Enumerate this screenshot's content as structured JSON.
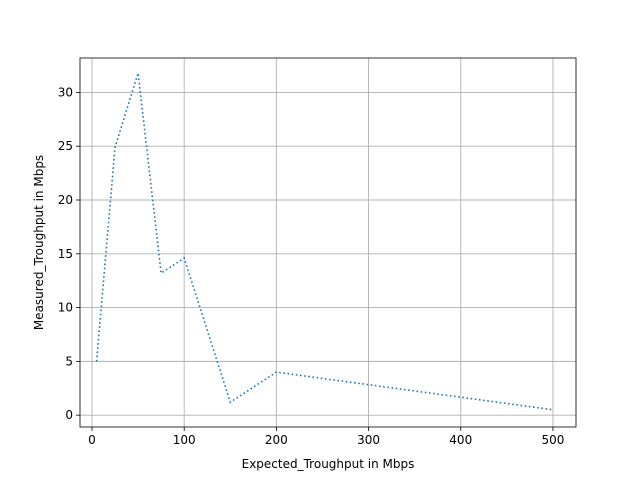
{
  "chart_data": {
    "type": "line",
    "title": "",
    "xlabel": "Expected_Troughput in Mbps",
    "ylabel": "Measured_Troughput in Mbps",
    "xlim": [
      -13,
      525
    ],
    "ylim": [
      -1.1,
      33.2
    ],
    "xticks": [
      0,
      100,
      200,
      300,
      400,
      500
    ],
    "yticks": [
      0,
      5,
      10,
      15,
      20,
      25,
      30
    ],
    "grid": true,
    "series": [
      {
        "line_style": "dotted",
        "color": "#1f77b4",
        "x": [
          5,
          25,
          50,
          75,
          100,
          150,
          200,
          500
        ],
        "y": [
          5.0,
          24.9,
          31.8,
          13.2,
          14.6,
          1.2,
          4.0,
          0.5
        ]
      }
    ]
  }
}
